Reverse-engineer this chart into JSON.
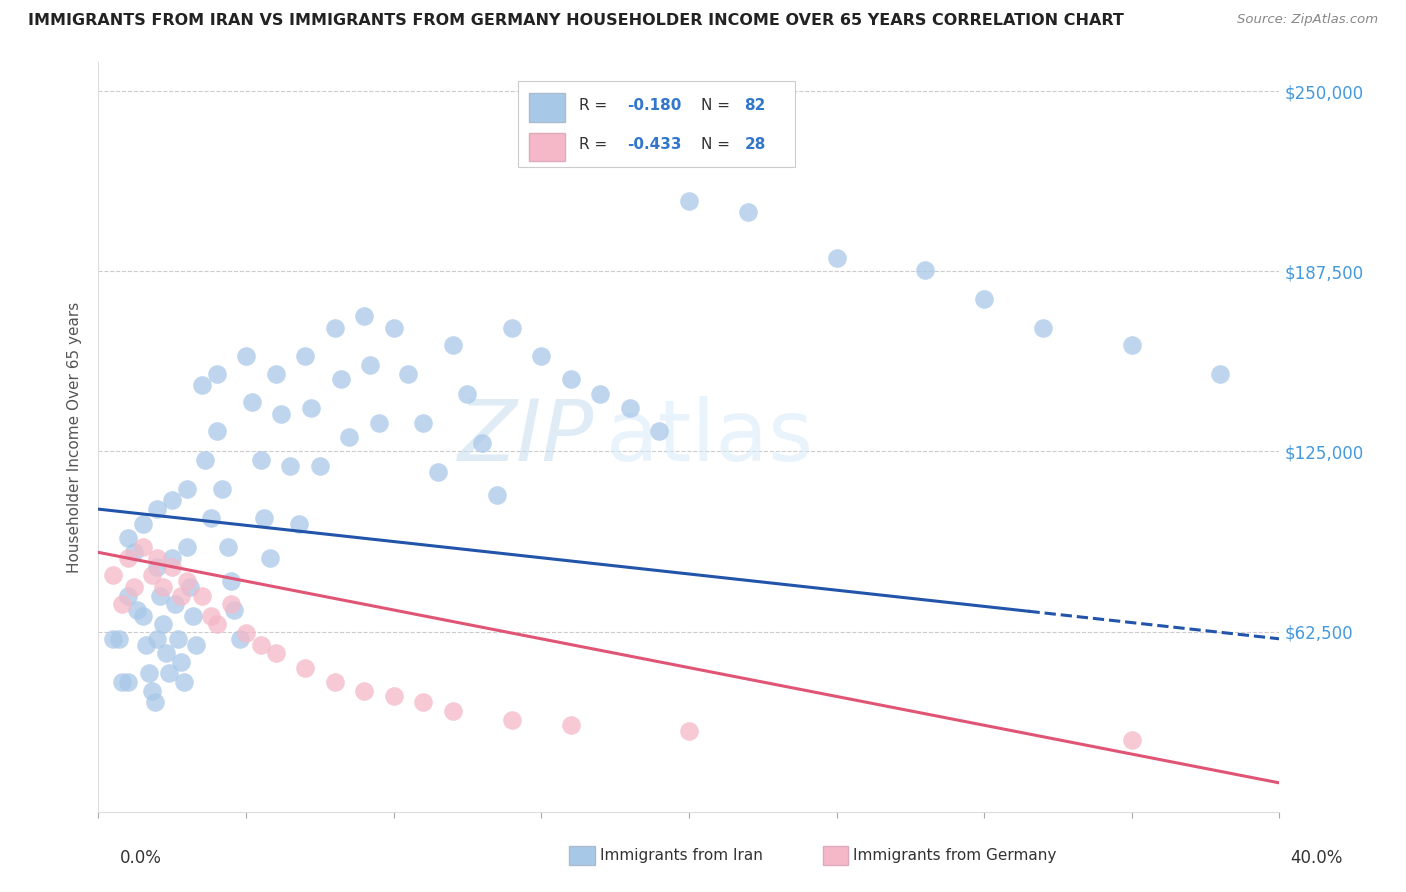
{
  "title": "IMMIGRANTS FROM IRAN VS IMMIGRANTS FROM GERMANY HOUSEHOLDER INCOME OVER 65 YEARS CORRELATION CHART",
  "source": "Source: ZipAtlas.com",
  "ylabel": "Householder Income Over 65 years",
  "yticks": [
    0,
    62500,
    125000,
    187500,
    250000
  ],
  "ytick_labels": [
    "",
    "$62,500",
    "$125,000",
    "$187,500",
    "$250,000"
  ],
  "xlim": [
    0.0,
    0.4
  ],
  "ylim": [
    0,
    260000
  ],
  "iran_color": "#a8c8e8",
  "germany_color": "#f4b8c8",
  "iran_line_color": "#2255aa",
  "germany_line_color": "#e05575",
  "iran_line_x0": 0.0,
  "iran_line_y0": 105000,
  "iran_line_x1": 0.4,
  "iran_line_y1": 60000,
  "iran_dash_from": 0.315,
  "germany_line_x0": 0.0,
  "germany_line_y0": 90000,
  "germany_line_x1": 0.4,
  "germany_line_y1": 10000,
  "watermark_zip": "ZIP",
  "watermark_atlas": "atlas",
  "iran_scatter_x": [
    0.005,
    0.007,
    0.008,
    0.01,
    0.01,
    0.01,
    0.012,
    0.013,
    0.015,
    0.015,
    0.016,
    0.017,
    0.018,
    0.019,
    0.02,
    0.02,
    0.02,
    0.021,
    0.022,
    0.023,
    0.024,
    0.025,
    0.025,
    0.026,
    0.027,
    0.028,
    0.029,
    0.03,
    0.03,
    0.031,
    0.032,
    0.033,
    0.035,
    0.036,
    0.038,
    0.04,
    0.04,
    0.042,
    0.044,
    0.045,
    0.046,
    0.048,
    0.05,
    0.052,
    0.055,
    0.056,
    0.058,
    0.06,
    0.062,
    0.065,
    0.068,
    0.07,
    0.072,
    0.075,
    0.08,
    0.082,
    0.085,
    0.09,
    0.092,
    0.095,
    0.1,
    0.105,
    0.11,
    0.115,
    0.12,
    0.125,
    0.13,
    0.135,
    0.14,
    0.15,
    0.16,
    0.17,
    0.18,
    0.19,
    0.2,
    0.22,
    0.25,
    0.28,
    0.3,
    0.32,
    0.35,
    0.38
  ],
  "iran_scatter_y": [
    85000,
    70000,
    60000,
    95000,
    80000,
    55000,
    100000,
    75000,
    105000,
    72000,
    65000,
    55000,
    50000,
    45000,
    110000,
    90000,
    68000,
    80000,
    72000,
    60000,
    55000,
    115000,
    95000,
    78000,
    68000,
    58000,
    50000,
    120000,
    100000,
    85000,
    75000,
    65000,
    155000,
    130000,
    110000,
    160000,
    140000,
    120000,
    100000,
    88000,
    78000,
    68000,
    165000,
    150000,
    130000,
    110000,
    95000,
    160000,
    145000,
    128000,
    108000,
    165000,
    148000,
    128000,
    175000,
    158000,
    138000,
    180000,
    162000,
    142000,
    175000,
    160000,
    142000,
    125000,
    170000,
    152000,
    135000,
    118000,
    175000,
    165000,
    158000,
    152000,
    148000,
    140000,
    220000,
    215000,
    200000,
    195000,
    185000,
    175000,
    170000,
    160000
  ],
  "iran_scatter_y_real": [
    60000,
    60000,
    45000,
    95000,
    75000,
    45000,
    90000,
    70000,
    100000,
    68000,
    58000,
    48000,
    42000,
    38000,
    105000,
    85000,
    60000,
    75000,
    65000,
    55000,
    48000,
    108000,
    88000,
    72000,
    60000,
    52000,
    45000,
    112000,
    92000,
    78000,
    68000,
    58000,
    148000,
    122000,
    102000,
    152000,
    132000,
    112000,
    92000,
    80000,
    70000,
    60000,
    158000,
    142000,
    122000,
    102000,
    88000,
    152000,
    138000,
    120000,
    100000,
    158000,
    140000,
    120000,
    168000,
    150000,
    130000,
    172000,
    155000,
    135000,
    168000,
    152000,
    135000,
    118000,
    162000,
    145000,
    128000,
    110000,
    168000,
    158000,
    150000,
    145000,
    140000,
    132000,
    212000,
    208000,
    192000,
    188000,
    178000,
    168000,
    162000,
    152000
  ],
  "germany_scatter_x": [
    0.005,
    0.008,
    0.01,
    0.012,
    0.015,
    0.018,
    0.02,
    0.022,
    0.025,
    0.028,
    0.03,
    0.035,
    0.038,
    0.04,
    0.045,
    0.05,
    0.055,
    0.06,
    0.07,
    0.08,
    0.09,
    0.1,
    0.11,
    0.12,
    0.14,
    0.16,
    0.2,
    0.35
  ],
  "germany_scatter_y": [
    82000,
    72000,
    88000,
    78000,
    92000,
    82000,
    88000,
    78000,
    85000,
    75000,
    80000,
    75000,
    68000,
    65000,
    72000,
    62000,
    58000,
    55000,
    50000,
    45000,
    42000,
    40000,
    38000,
    35000,
    32000,
    30000,
    28000,
    25000
  ]
}
